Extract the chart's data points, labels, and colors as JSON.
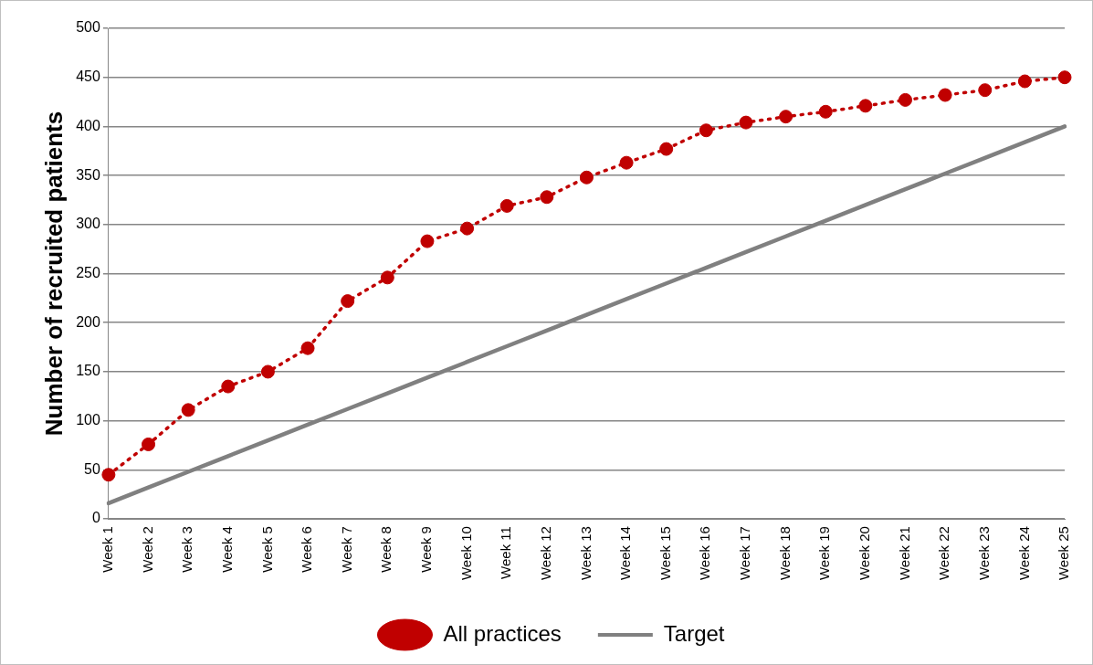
{
  "chart_data": {
    "type": "line",
    "ylabel": "Number of recruited patients",
    "categories": [
      "Week 1",
      "Week 2",
      "Week 3",
      "Week 4",
      "Week 5",
      "Week 6",
      "Week 7",
      "Week 8",
      "Week 9",
      "Week 10",
      "Week 11",
      "Week 12",
      "Week 13",
      "Week 14",
      "Week 15",
      "Week 16",
      "Week 17",
      "Week 18",
      "Week 19",
      "Week 20",
      "Week 21",
      "Week 22",
      "Week 23",
      "Week 24",
      "Week 25"
    ],
    "series": [
      {
        "name": "All practices",
        "color": "#c00000",
        "marker": "circle",
        "line_style": "dotted",
        "values": [
          45,
          76,
          111,
          135,
          150,
          174,
          222,
          246,
          283,
          296,
          319,
          328,
          348,
          363,
          377,
          396,
          404,
          410,
          415,
          421,
          427,
          432,
          437,
          446,
          450
        ]
      },
      {
        "name": "Target",
        "color": "#808080",
        "marker": "none",
        "line_style": "solid",
        "values": [
          16,
          32,
          48,
          64,
          80,
          96,
          112,
          128,
          144,
          160,
          176,
          192,
          208,
          224,
          240,
          256,
          272,
          288,
          304,
          320,
          336,
          352,
          368,
          384,
          400
        ]
      }
    ],
    "ylim": [
      0,
      500
    ],
    "yticks": [
      0,
      50,
      100,
      150,
      200,
      250,
      300,
      350,
      400,
      450,
      500
    ],
    "grid": "y",
    "legend": "bottom"
  }
}
